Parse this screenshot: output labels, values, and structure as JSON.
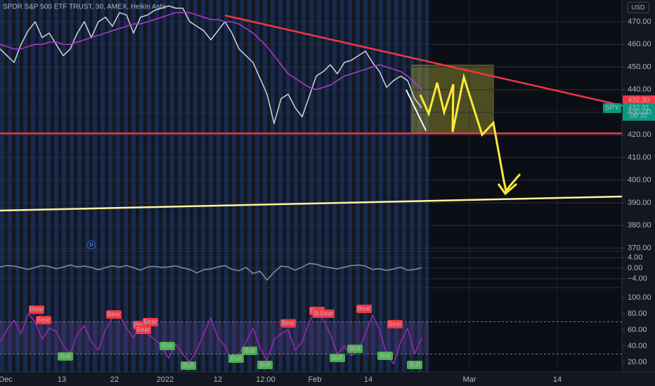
{
  "header": {
    "title": "SPDR S&P 500 ETF TRUST, 30, AMEX, Heikin Ashi",
    "currency": "USD",
    "marker": "D"
  },
  "price_tags": {
    "last": "432.30",
    "symbol": "SPY",
    "close": "432.01",
    "countdown": "08:32"
  },
  "chart_data": [
    {
      "type": "line",
      "x": [
        0,
        1,
        2,
        3,
        4,
        5,
        6,
        7,
        8,
        9,
        10,
        11,
        12,
        13,
        14,
        15,
        16,
        17,
        18,
        19,
        20,
        21,
        22,
        23,
        24,
        25,
        26,
        27,
        28,
        29,
        30,
        31,
        32,
        33,
        34,
        35,
        36,
        37,
        38,
        39,
        40,
        41,
        42,
        43,
        44,
        45,
        46,
        47,
        48,
        49,
        50,
        51,
        52,
        53,
        54,
        55,
        56,
        57,
        58,
        59,
        60
      ],
      "xlim": [
        0,
        88.5
      ],
      "xticks": [
        {
          "value": 0.8,
          "label": "Dec"
        },
        {
          "value": 8.8,
          "label": "13"
        },
        {
          "value": 16.3,
          "label": "22"
        },
        {
          "value": 23.5,
          "label": "2022"
        },
        {
          "value": 31,
          "label": "12"
        },
        {
          "value": 37.8,
          "label": "12:00"
        },
        {
          "value": 44.8,
          "label": "Feb"
        },
        {
          "value": 52.4,
          "label": "14"
        },
        {
          "value": 66.8,
          "label": "Mar"
        },
        {
          "value": 79.3,
          "label": "14"
        }
      ],
      "ylim": [
        368.9,
        479.6
      ],
      "yticks": [
        {
          "value": 370,
          "label": "370.00"
        },
        {
          "value": 380,
          "label": "380.00"
        },
        {
          "value": 390,
          "label": "390.00"
        },
        {
          "value": 400,
          "label": "400.00"
        },
        {
          "value": 410,
          "label": "410.00"
        },
        {
          "value": 420,
          "label": "420.00"
        },
        {
          "value": 430,
          "label": "430.00"
        },
        {
          "value": 440,
          "label": "440.00"
        },
        {
          "value": 450,
          "label": "450.00"
        },
        {
          "value": 460,
          "label": "460.00"
        },
        {
          "value": 470,
          "label": "470.00"
        }
      ],
      "grid": true,
      "series": [
        {
          "color": "#d1d4dc",
          "values": [
            458,
            455,
            452,
            460,
            466,
            470,
            463,
            465,
            460,
            455,
            458,
            465,
            470,
            463,
            470,
            472,
            468,
            474,
            473,
            465,
            472,
            473,
            475,
            476,
            477,
            476,
            476,
            470,
            468,
            466,
            462,
            466,
            470,
            465,
            458,
            455,
            452,
            445,
            438,
            425,
            436,
            438,
            432,
            428,
            437,
            446,
            448,
            451,
            447,
            452,
            453,
            455,
            457,
            452,
            448,
            441,
            444,
            446,
            444,
            436,
            432
          ]
        },
        {
          "color": "#b03ad3",
          "values": [
            460,
            459,
            458,
            458,
            459,
            460,
            460,
            461,
            461,
            460,
            460,
            461,
            462,
            463,
            464,
            465,
            466,
            467,
            468,
            469,
            469,
            470,
            471,
            472,
            473,
            474,
            474,
            474,
            473,
            472,
            471,
            471,
            470,
            470,
            469,
            467,
            465,
            462,
            459,
            455,
            451,
            447,
            445,
            443,
            441,
            440,
            441,
            442,
            444,
            446,
            447,
            448,
            449,
            450,
            451,
            450,
            449,
            448,
            446,
            443,
            440
          ]
        }
      ]
    },
    {
      "type": "line",
      "x": [
        0,
        1,
        2,
        3,
        4,
        5,
        6,
        7,
        8,
        9,
        10,
        11,
        12,
        13,
        14,
        15,
        16,
        17,
        18,
        19,
        20,
        21,
        22,
        23,
        24,
        25,
        26,
        27,
        28,
        29,
        30,
        31,
        32,
        33,
        34,
        35,
        36,
        37,
        38,
        39,
        40,
        41,
        42,
        43,
        44,
        45,
        46,
        47,
        48,
        49,
        50,
        51,
        52,
        53,
        54,
        55,
        56,
        57,
        58,
        59,
        60
      ],
      "xlim": [
        0,
        88.5
      ],
      "ylim": [
        -6.9,
        5.9
      ],
      "yticks": [
        {
          "value": 4,
          "label": "4.00"
        },
        {
          "value": 0,
          "label": "0.00"
        },
        {
          "value": -4,
          "label": "−4.00"
        }
      ],
      "grid": true,
      "series": [
        {
          "color": "#8a8f99",
          "values": [
            0.5,
            1,
            0.8,
            0.2,
            -0.5,
            0.3,
            1,
            0.6,
            -0.2,
            0.4,
            1.2,
            0.5,
            0.8,
            0.3,
            -0.6,
            0.2,
            0.9,
            0.4,
            1,
            0.2,
            -0.8,
            0.5,
            0.7,
            0.3,
            0.5,
            0.9,
            0.1,
            -0.5,
            -1.8,
            -0.6,
            -0.3,
            0.5,
            1,
            -0.4,
            -1,
            0.3,
            -2,
            -1.2,
            -4.5,
            -1.5,
            0.8,
            0.5,
            -0.8,
            0.4,
            1.8,
            1.5,
            0.6,
            0.2,
            -0.3,
            0.4,
            1,
            1.2,
            0.8,
            -0.5,
            -0.2,
            -0.9,
            -0.3,
            0.4,
            -0.8,
            -0.5,
            0.2
          ]
        }
      ]
    },
    {
      "type": "line",
      "x": [
        0,
        1,
        2,
        3,
        4,
        5,
        6,
        7,
        8,
        9,
        10,
        11,
        12,
        13,
        14,
        15,
        16,
        17,
        18,
        19,
        20,
        21,
        22,
        23,
        24,
        25,
        26,
        27,
        28,
        29,
        30,
        31,
        32,
        33,
        34,
        35,
        36,
        37,
        38,
        39,
        40,
        41,
        42,
        43,
        44,
        45,
        46,
        47,
        48,
        49,
        50,
        51,
        52,
        53,
        54,
        55,
        56,
        57,
        58,
        59,
        60
      ],
      "xlim": [
        0,
        88.5
      ],
      "ylim": [
        7.8,
        111.3
      ],
      "yticks": [
        {
          "value": 100,
          "label": "100.00"
        },
        {
          "value": 80,
          "label": "80.00"
        },
        {
          "value": 60,
          "label": "60.00"
        },
        {
          "value": 40,
          "label": "40.00"
        },
        {
          "value": 20,
          "label": "20.00"
        }
      ],
      "bands": [
        30,
        70
      ],
      "grid": false,
      "series": [
        {
          "color": "#9c27b0",
          "values": [
            45,
            60,
            72,
            55,
            80,
            70,
            48,
            62,
            58,
            40,
            30,
            55,
            65,
            45,
            35,
            60,
            75,
            78,
            62,
            50,
            70,
            55,
            48,
            40,
            25,
            42,
            30,
            20,
            35,
            55,
            75,
            50,
            40,
            20,
            30,
            45,
            62,
            38,
            22,
            48,
            55,
            60,
            35,
            45,
            70,
            85,
            72,
            55,
            30,
            40,
            28,
            35,
            55,
            78,
            60,
            30,
            18,
            45,
            62,
            30,
            50
          ]
        }
      ],
      "signals": [
        {
          "label": "Bear",
          "x": 5.2,
          "value": 85
        },
        {
          "label": "Bear",
          "x": 6.2,
          "value": 72
        },
        {
          "label": "Bear",
          "x": 16.2,
          "value": 79
        },
        {
          "label": "Bear",
          "x": 20,
          "value": 66
        },
        {
          "label": "Bear",
          "x": 20.4,
          "value": 60
        },
        {
          "label": "Bear",
          "x": 21.4,
          "value": 69.5
        },
        {
          "label": "Bear",
          "x": 41,
          "value": 68
        },
        {
          "label": "Bear",
          "x": 45.1,
          "value": 83.5
        },
        {
          "label": "Bear",
          "x": 45.6,
          "value": 80
        },
        {
          "label": "Bear",
          "x": 46.5,
          "value": 80
        },
        {
          "label": "Bear",
          "x": 51.8,
          "value": 86
        },
        {
          "label": "Bear",
          "x": 56.2,
          "value": 67
        },
        {
          "label": "Bull",
          "x": 9.3,
          "value": 27
        },
        {
          "label": "Bull",
          "x": 23.8,
          "value": 40
        },
        {
          "label": "Bull",
          "x": 26.8,
          "value": 15.6
        },
        {
          "label": "Bull",
          "x": 33.6,
          "value": 24.3
        },
        {
          "label": "Bull",
          "x": 35.5,
          "value": 34
        },
        {
          "label": "Bull",
          "x": 37.7,
          "value": 16.5
        },
        {
          "label": "Bull",
          "x": 48,
          "value": 25.2
        },
        {
          "label": "Bull",
          "x": 50.5,
          "value": 36.5
        },
        {
          "label": "Bull",
          "x": 54.8,
          "value": 27.8
        },
        {
          "label": "Bull",
          "x": 59,
          "value": 16.5
        }
      ]
    }
  ]
}
